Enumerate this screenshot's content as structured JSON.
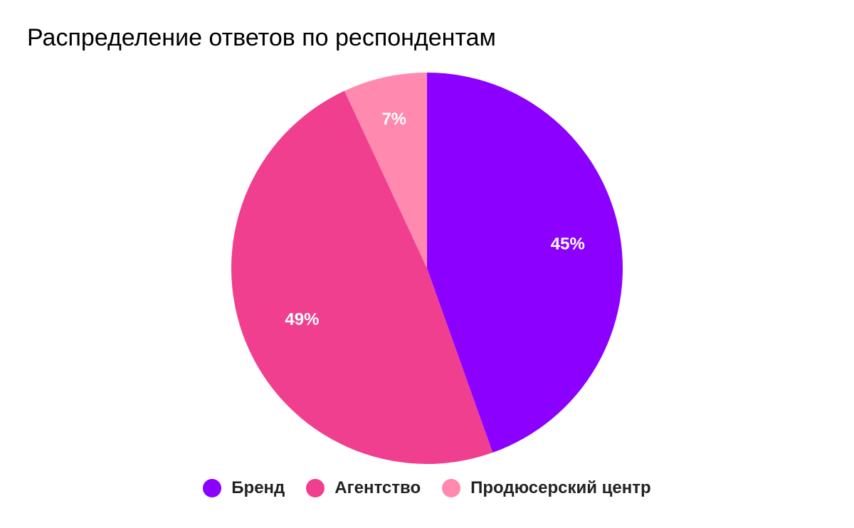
{
  "chart_data": {
    "type": "pie",
    "title": "Распределение ответов по респондентам",
    "slices": [
      {
        "name": "Бренд",
        "value": 45,
        "label": "45%",
        "color": "#8C00FF"
      },
      {
        "name": "Агентство",
        "value": 49,
        "label": "49%",
        "color": "#F03F8E"
      },
      {
        "name": "Продюсерский центр",
        "value": 7,
        "label": "7%",
        "color": "#FF89AF"
      }
    ],
    "legend_position": "bottom",
    "start_angle": "top",
    "direction": "clockwise"
  }
}
